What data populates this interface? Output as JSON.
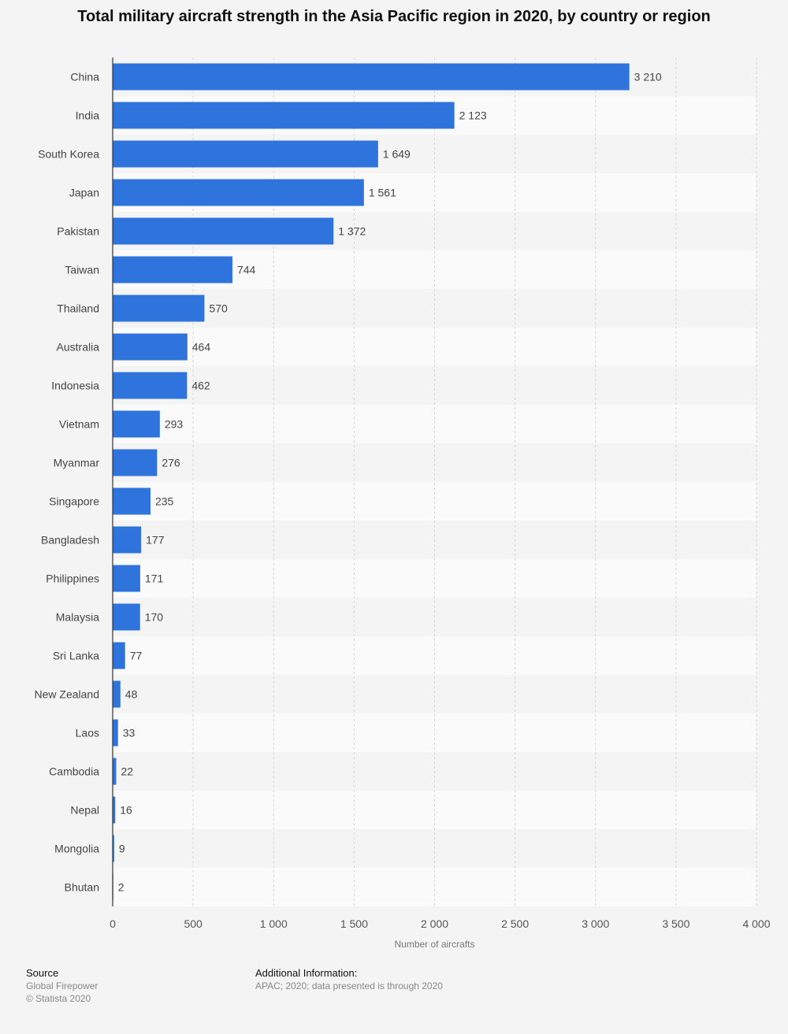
{
  "chart_data": {
    "type": "bar",
    "orientation": "horizontal",
    "title": "Total military aircraft strength in the Asia Pacific region in 2020, by country or region",
    "xlabel": "Number of aircrafts",
    "ylabel": "",
    "xlim": [
      0,
      4000
    ],
    "ticks": [
      0,
      500,
      1000,
      1500,
      2000,
      2500,
      3000,
      3500,
      4000
    ],
    "tick_labels": [
      "0",
      "500",
      "1 000",
      "1 500",
      "2 000",
      "2 500",
      "3 000",
      "3 500",
      "4 000"
    ],
    "categories": [
      "China",
      "India",
      "South Korea",
      "Japan",
      "Pakistan",
      "Taiwan",
      "Thailand",
      "Australia",
      "Indonesia",
      "Vietnam",
      "Myanmar",
      "Singapore",
      "Bangladesh",
      "Philippines",
      "Malaysia",
      "Sri Lanka",
      "New Zealand",
      "Laos",
      "Cambodia",
      "Nepal",
      "Mongolia",
      "Bhutan"
    ],
    "values": [
      3210,
      2123,
      1649,
      1561,
      1372,
      744,
      570,
      464,
      462,
      293,
      276,
      235,
      177,
      171,
      170,
      77,
      48,
      33,
      22,
      16,
      9,
      2
    ],
    "value_labels": [
      "3 210",
      "2 123",
      "1 649",
      "1 561",
      "1 372",
      "744",
      "570",
      "464",
      "462",
      "293",
      "276",
      "235",
      "177",
      "171",
      "170",
      "77",
      "48",
      "33",
      "22",
      "16",
      "9",
      "2"
    ],
    "bar_color": "#2f74dc",
    "grid": true
  },
  "footer": {
    "source_heading": "Source",
    "source_name": "Global Firepower",
    "copyright": "© Statista 2020",
    "info_heading": "Additional Information:",
    "info_text": "APAC; 2020; data presented is through 2020"
  }
}
